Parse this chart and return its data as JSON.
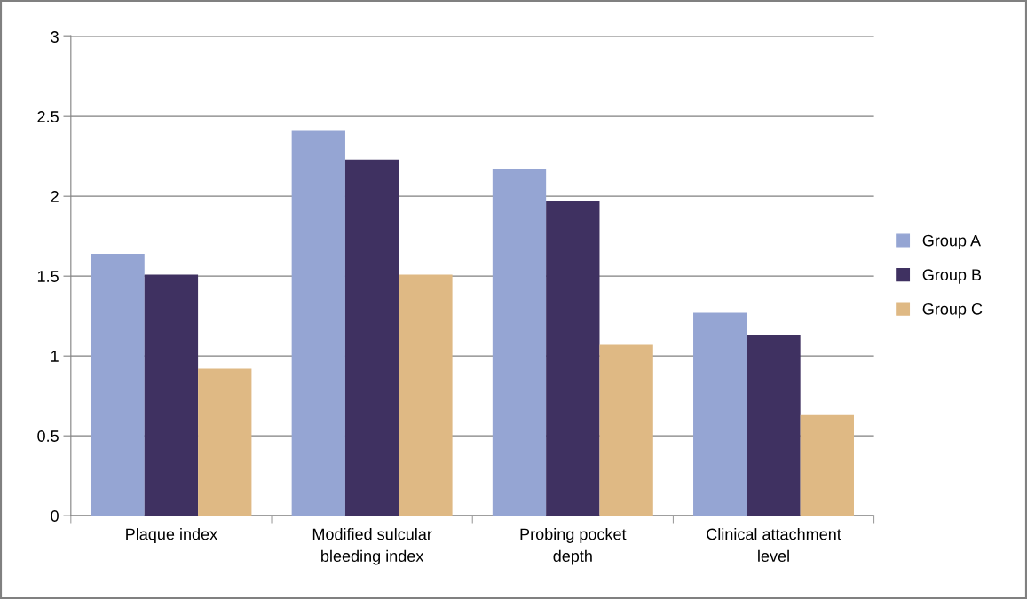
{
  "chart_data": {
    "type": "bar",
    "categories": [
      "Plaque index",
      "Modified sulcular\nbleeding index",
      "Probing pocket\ndepth",
      "Clinical attachment\nlevel"
    ],
    "series": [
      {
        "name": "Group A",
        "color": "#95a5d3",
        "values": [
          1.64,
          2.41,
          2.17,
          1.27
        ]
      },
      {
        "name": "Group B",
        "color": "#3f3161",
        "values": [
          1.51,
          2.23,
          1.97,
          1.13
        ]
      },
      {
        "name": "Group C",
        "color": "#dfb984",
        "values": [
          0.92,
          1.51,
          1.07,
          0.63
        ]
      }
    ],
    "ylim": [
      0,
      3
    ],
    "yticks": [
      0,
      {
        "value": 0.5,
        "label": "0.5"
      },
      1,
      {
        "value": 1.5,
        "label": "1.5"
      },
      2,
      {
        "value": 2.5,
        "label": "2.5"
      },
      3
    ],
    "grid": "y",
    "legend": "right"
  }
}
